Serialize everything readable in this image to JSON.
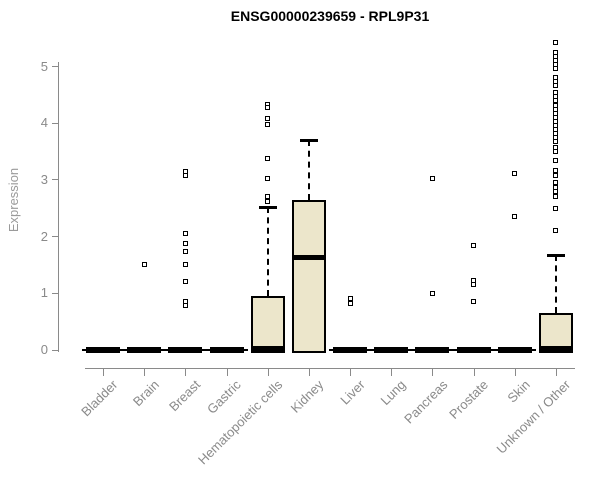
{
  "chart_data": {
    "type": "boxplot",
    "title": "ENSG00000239659 - RPL9P31",
    "ylabel": "Expression",
    "xlabel": "",
    "ylim": [
      0,
      5.5
    ],
    "yticks": [
      0,
      1,
      2,
      3,
      4,
      5
    ],
    "grid": false,
    "legend": "none",
    "colors": {
      "box_fill": "#ece6cb",
      "box_border": "#000000",
      "axis": "#8a8a8a",
      "tick_label": "#8a8a8a",
      "title": "#000000"
    },
    "categories": [
      "Bladder",
      "Brain",
      "Breast",
      "Gastric",
      "Hematopoietic cells",
      "Kidney",
      "Liver",
      "Lung",
      "Pancreas",
      "Prostate",
      "Skin",
      "Unknown / Other"
    ],
    "series": [
      {
        "category": "Bladder",
        "flat": true,
        "q1": 0,
        "median": 0,
        "q3": 0,
        "whisker_high": 0,
        "outliers": []
      },
      {
        "category": "Brain",
        "flat": true,
        "q1": 0,
        "median": 0,
        "q3": 0,
        "whisker_high": 0,
        "outliers": [
          1.5
        ]
      },
      {
        "category": "Breast",
        "flat": true,
        "q1": 0,
        "median": 0,
        "q3": 0,
        "whisker_high": 0,
        "outliers": [
          3.15,
          3.07,
          2.05,
          1.88,
          1.73,
          1.51,
          1.2,
          0.85,
          0.78
        ]
      },
      {
        "category": "Gastric",
        "flat": true,
        "q1": 0,
        "median": 0,
        "q3": 0,
        "whisker_high": 0,
        "outliers": []
      },
      {
        "category": "Hematopoietic cells",
        "flat": false,
        "q1": 0,
        "median": 0.02,
        "q3": 0.95,
        "whisker_high": 2.53,
        "outliers": [
          4.33,
          4.27,
          4.08,
          3.98,
          3.37,
          3.02,
          2.7,
          2.62
        ]
      },
      {
        "category": "Kidney",
        "flat": false,
        "q1": 0,
        "median": 1.63,
        "q3": 2.65,
        "whisker_high": 3.7,
        "outliers": []
      },
      {
        "category": "Liver",
        "flat": true,
        "q1": 0,
        "median": 0,
        "q3": 0,
        "whisker_high": 0,
        "outliers": [
          0.9,
          0.82
        ]
      },
      {
        "category": "Lung",
        "flat": true,
        "q1": 0,
        "median": 0,
        "q3": 0,
        "whisker_high": 0,
        "outliers": []
      },
      {
        "category": "Pancreas",
        "flat": true,
        "q1": 0,
        "median": 0,
        "q3": 0,
        "whisker_high": 0,
        "outliers": [
          3.02,
          1.0
        ]
      },
      {
        "category": "Prostate",
        "flat": true,
        "q1": 0,
        "median": 0,
        "q3": 0,
        "whisker_high": 0,
        "outliers": [
          1.85,
          1.22,
          1.15,
          0.85
        ]
      },
      {
        "category": "Skin",
        "flat": true,
        "q1": 0,
        "median": 0,
        "q3": 0,
        "whisker_high": 0,
        "outliers": [
          3.12,
          2.35
        ]
      },
      {
        "category": "Unknown / Other",
        "flat": false,
        "q1": 0,
        "median": 0.03,
        "q3": 0.66,
        "whisker_high": 1.68,
        "outliers": [
          5.43,
          5.24,
          5.17,
          5.1,
          5.03,
          4.97,
          4.81,
          4.74,
          4.67,
          4.54,
          4.47,
          4.4,
          4.31,
          4.24,
          4.17,
          4.1,
          4.03,
          3.96,
          3.89,
          3.82,
          3.75,
          3.68,
          3.57,
          3.5,
          3.35,
          3.16,
          3.07,
          2.95,
          2.87,
          2.79,
          2.71,
          2.49,
          2.1
        ]
      }
    ]
  }
}
